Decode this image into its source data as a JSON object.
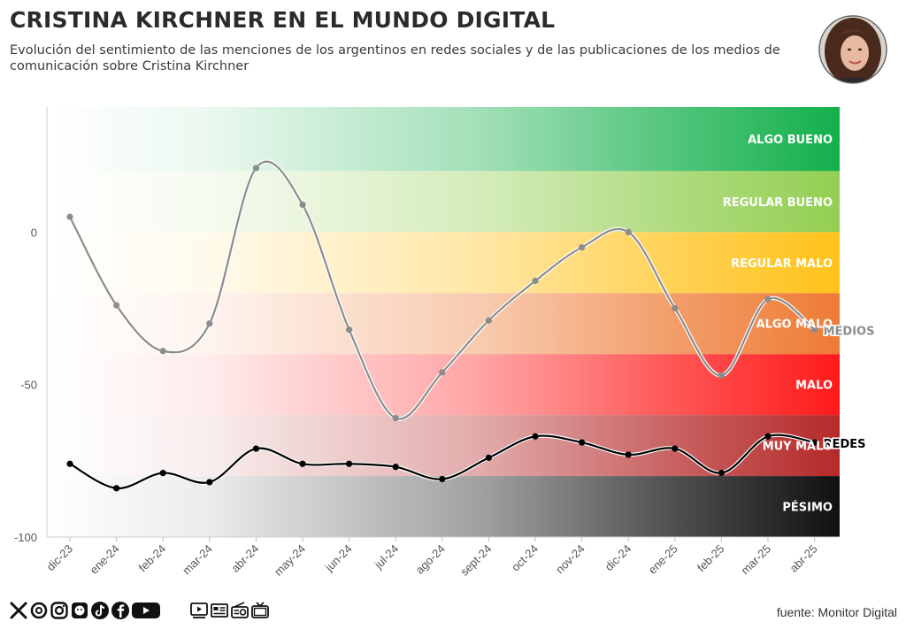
{
  "title": "CRISTINA KIRCHNER EN EL MUNDO DIGITAL",
  "subtitle": "Evolución del sentimiento de las menciones de los argentinos en redes sociales y de las publicaciones de los medios de comunicación sobre Cristina Kirchner",
  "source": "fuente: Monitor Digital",
  "colors": {
    "algo_bueno": "#14b04c",
    "regular_bueno": "#93cf52",
    "regular_malo": "#ffc21a",
    "algo_malo": "#ee7b35",
    "malo": "#ff1a1a",
    "muy_malo": "#b52a2a",
    "pesimo": "#111111",
    "medios": "#8c8c8c",
    "redes": "#000000"
  },
  "footer_icons": [
    "x-icon",
    "threads-icon",
    "instagram-icon",
    "sticker-icon",
    "tiktok-icon",
    "facebook-icon",
    "youtube-icon",
    "video-icon",
    "newspaper-icon",
    "radio-icon",
    "tv-icon"
  ],
  "chart_data": {
    "type": "line",
    "x": [
      "dic-23",
      "ene-24",
      "feb-24",
      "mar-24",
      "abr-24",
      "may-24",
      "jun-24",
      "jul-24",
      "ago-24",
      "sept-24",
      "oct-24",
      "nov-24",
      "dic-24",
      "ene-25",
      "feb-25",
      "mar-25",
      "abr-25"
    ],
    "ylim": [
      -100,
      41
    ],
    "yticks": [
      0,
      -50,
      -100
    ],
    "bands": [
      {
        "label": "ALGO BUENO",
        "from": 20,
        "to": 41,
        "color": "#14b04c"
      },
      {
        "label": "REGULAR BUENO",
        "from": 0,
        "to": 20,
        "color": "#93cf52"
      },
      {
        "label": "REGULAR MALO",
        "from": -20,
        "to": 0,
        "color": "#ffc21a"
      },
      {
        "label": "ALGO MALO",
        "from": -40,
        "to": -20,
        "color": "#ee7b35"
      },
      {
        "label": "MALO",
        "from": -60,
        "to": -40,
        "color": "#ff1a1a"
      },
      {
        "label": "MUY MALO",
        "from": -80,
        "to": -60,
        "color": "#b52a2a"
      },
      {
        "label": "PÉSIMO",
        "from": -100,
        "to": -80,
        "color": "#111111"
      }
    ],
    "series": [
      {
        "name": "MEDIOS",
        "color": "#8c8c8c",
        "values": [
          5,
          -24,
          -39,
          -30,
          21,
          9,
          -32,
          -61,
          -46,
          -29,
          -16,
          -5,
          0,
          -25,
          -47,
          -22,
          -32
        ]
      },
      {
        "name": "REDES",
        "color": "#000000",
        "values": [
          -76,
          -84,
          -79,
          -82,
          -71,
          -76,
          -76,
          -77,
          -81,
          -74,
          -67,
          -69,
          -73,
          -71,
          -79,
          -67,
          -69
        ]
      }
    ]
  }
}
